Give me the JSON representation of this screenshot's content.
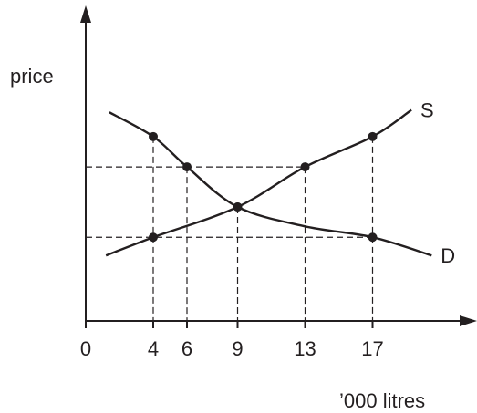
{
  "chart_data": {
    "type": "line",
    "title": "",
    "xlabel": "’000 litres",
    "ylabel": "price",
    "x_ticks": [
      "0",
      "4",
      "6",
      "9",
      "13",
      "17"
    ],
    "y_ticks": [],
    "ylim": [
      0,
      10
    ],
    "guide_lines": {
      "horizontal_y": [
        6.35,
        3.45
      ],
      "vertical_x": [
        4,
        6,
        9,
        13,
        17
      ]
    },
    "series": [
      {
        "name": "S",
        "points": [
          [
            1.2,
            2.7
          ],
          [
            4,
            3.45
          ],
          [
            9,
            4.7
          ],
          [
            13,
            6.35
          ],
          [
            17,
            7.6
          ],
          [
            19.3,
            8.7
          ]
        ],
        "marked_x": [
          4,
          9,
          13,
          17
        ]
      },
      {
        "name": "D",
        "points": [
          [
            1.4,
            8.6
          ],
          [
            4,
            7.6
          ],
          [
            6,
            6.35
          ],
          [
            9,
            4.7
          ],
          [
            13,
            3.9
          ],
          [
            17,
            3.45
          ],
          [
            20.5,
            2.7
          ]
        ],
        "marked_x": [
          4,
          6,
          9,
          17
        ]
      }
    ],
    "colors": {
      "ink": "#231f20",
      "background": "#ffffff"
    },
    "grid": false,
    "legend": "none (curves labelled at their right ends)"
  }
}
